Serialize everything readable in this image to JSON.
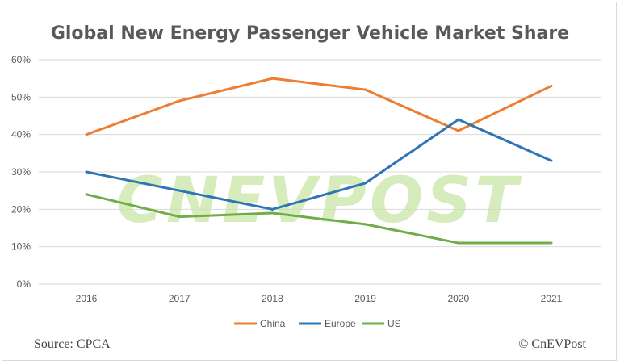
{
  "chart_data": {
    "type": "line",
    "title": "Global New Energy Passenger Vehicle Market Share",
    "categories": [
      "2016",
      "2017",
      "2018",
      "2019",
      "2020",
      "2021"
    ],
    "series": [
      {
        "name": "China",
        "color": "#ed7d31",
        "values": [
          40,
          49,
          55,
          52,
          41,
          53
        ]
      },
      {
        "name": "Europe",
        "color": "#2e75b6",
        "values": [
          30,
          25,
          20,
          27,
          44,
          33
        ]
      },
      {
        "name": "US",
        "color": "#70ad47",
        "values": [
          24,
          18,
          19,
          16,
          11,
          11
        ]
      }
    ],
    "yticks": [
      "0%",
      "10%",
      "20%",
      "30%",
      "40%",
      "50%",
      "60%"
    ],
    "ylim": [
      0,
      60
    ],
    "grid": true,
    "legend": "bottom",
    "watermark": "CNEVPOST"
  },
  "footer": {
    "source": "Source: CPCA",
    "copyright": "© CnEVPost"
  }
}
